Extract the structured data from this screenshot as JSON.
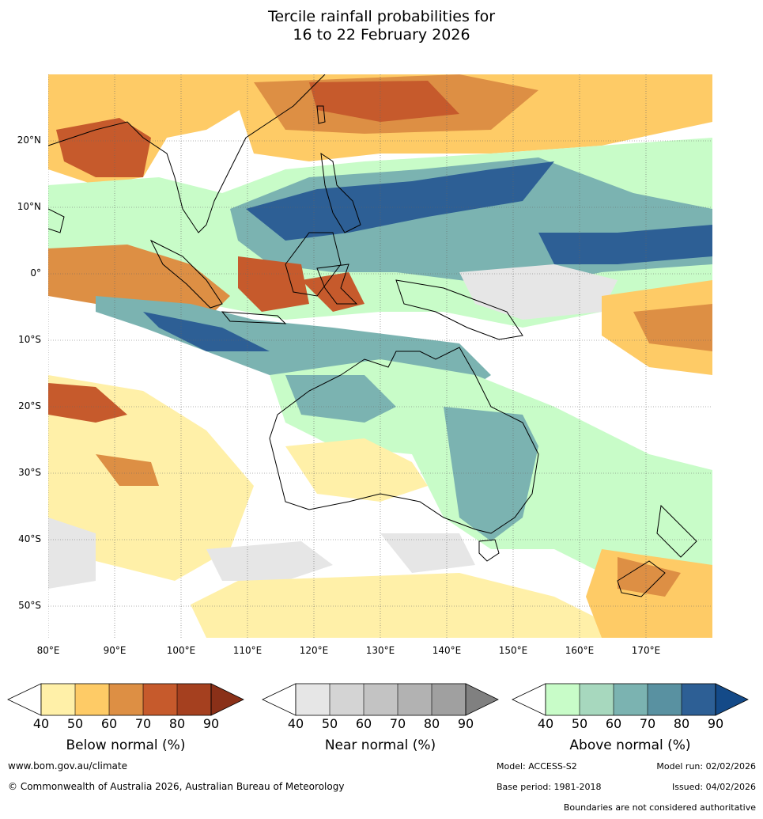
{
  "title_line1": "Tercile rainfall probabilities for",
  "title_line2": "16 to 22 February 2026",
  "lat_labels": [
    "20°N",
    "10°N",
    "0°",
    "10°S",
    "20°S",
    "30°S",
    "40°S",
    "50°S"
  ],
  "lon_labels": [
    "80°E",
    "90°E",
    "100°E",
    "110°E",
    "120°E",
    "130°E",
    "140°E",
    "150°E",
    "160°E",
    "170°E"
  ],
  "colorbars": {
    "below": {
      "title": "Below normal (%)",
      "ticks": [
        "40",
        "50",
        "60",
        "70",
        "80",
        "90"
      ],
      "colors": [
        "#fff0a8",
        "#fecb66",
        "#dd8f44",
        "#c65a2c",
        "#a5401f",
        "#8a3018"
      ]
    },
    "near": {
      "title": "Near normal (%)",
      "ticks": [
        "40",
        "50",
        "60",
        "70",
        "80",
        "90"
      ],
      "colors": [
        "#e6e6e6",
        "#d4d4d4",
        "#c3c3c3",
        "#b2b2b2",
        "#a0a0a0",
        "#808080"
      ]
    },
    "above": {
      "title": "Above normal (%)",
      "ticks": [
        "40",
        "50",
        "60",
        "70",
        "80",
        "90"
      ],
      "colors": [
        "#c8fcc8",
        "#a7d8be",
        "#7bb3b1",
        "#5991a1",
        "#2d5f95",
        "#144a88"
      ]
    }
  },
  "footer": {
    "url": "www.bom.gov.au/climate",
    "copyright": "© Commonwealth of Australia 2026, Australian Bureau of Meteorology",
    "model": "Model: ACCESS-S2",
    "model_run": "Model run: 02/02/2026",
    "base_period": "Base period: 1981-2018",
    "issued": "Issued: 04/02/2026",
    "disclaimer": "Boundaries are not considered authoritative"
  }
}
